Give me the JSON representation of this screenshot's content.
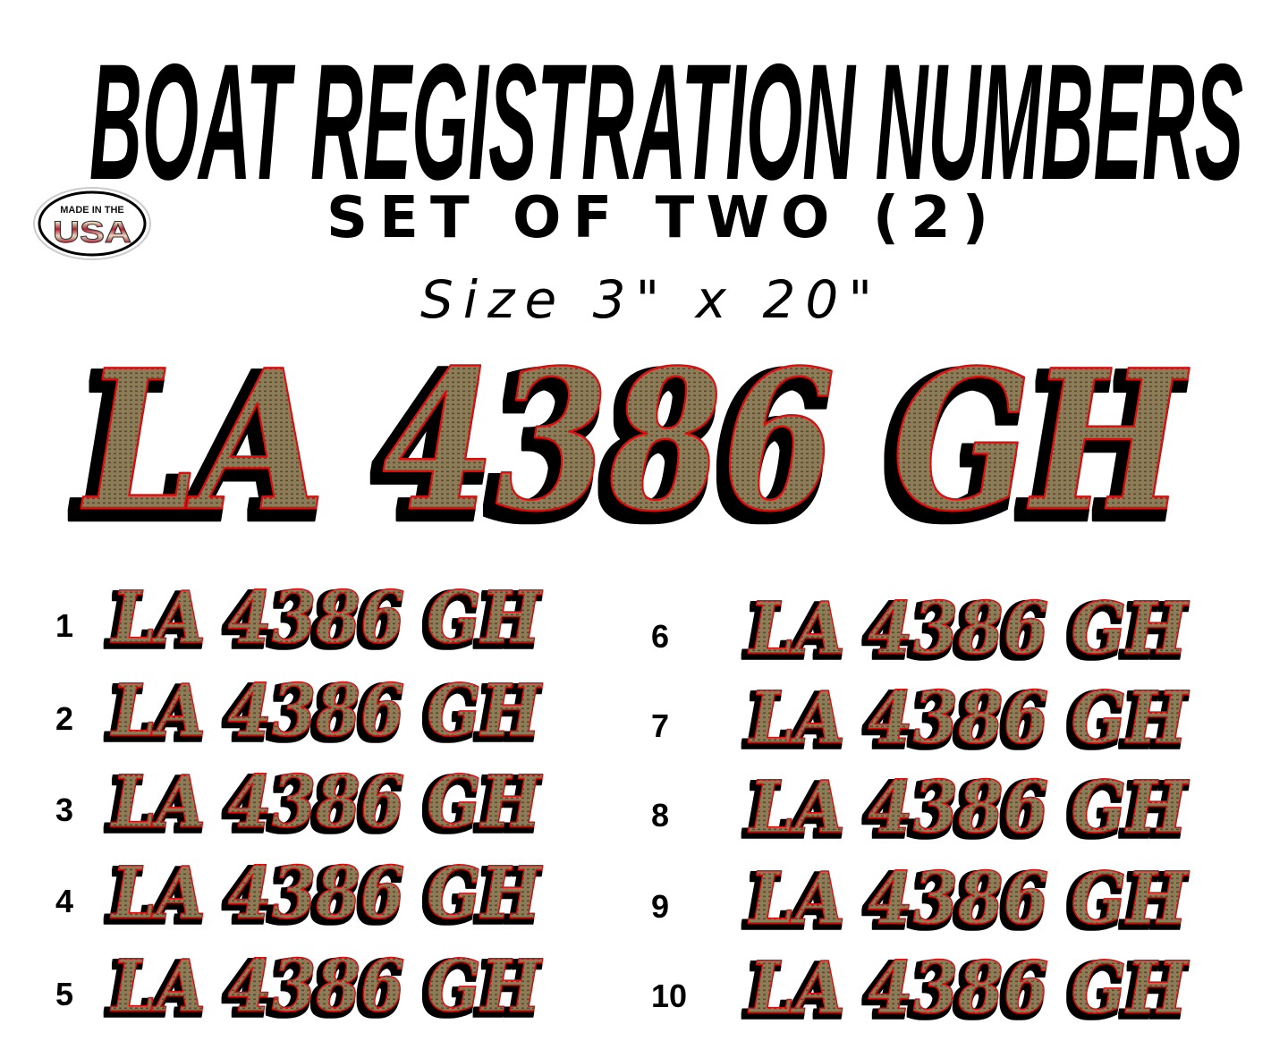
{
  "header": {
    "title": "BOAT REGISTRATION NUMBERS",
    "subtitle": "SET OF TWO (2)",
    "size": "Size 3\" x 20\""
  },
  "badge": {
    "line1": "MADE IN THE",
    "line2": "USA"
  },
  "colors": {
    "fill": "#8c7b58",
    "dots": "#5a4a30",
    "outline": "#e01010",
    "shadow": "#000000"
  },
  "main_decal": "LA 4386 GH",
  "styles": [
    {
      "number": "1",
      "text": "LA 4386 GH"
    },
    {
      "number": "2",
      "text": "LA 4386 GH"
    },
    {
      "number": "3",
      "text": "LA 4386 GH"
    },
    {
      "number": "4",
      "text": "LA 4386 GH"
    },
    {
      "number": "5",
      "text": "LA 4386 GH"
    },
    {
      "number": "6",
      "text": "LA 4386 GH"
    },
    {
      "number": "7",
      "text": "LA 4386 GH"
    },
    {
      "number": "8",
      "text": "LA 4386 GH"
    },
    {
      "number": "9",
      "text": "LA 4386 GH"
    },
    {
      "number": "10",
      "text": "LA 4386 GH"
    }
  ]
}
